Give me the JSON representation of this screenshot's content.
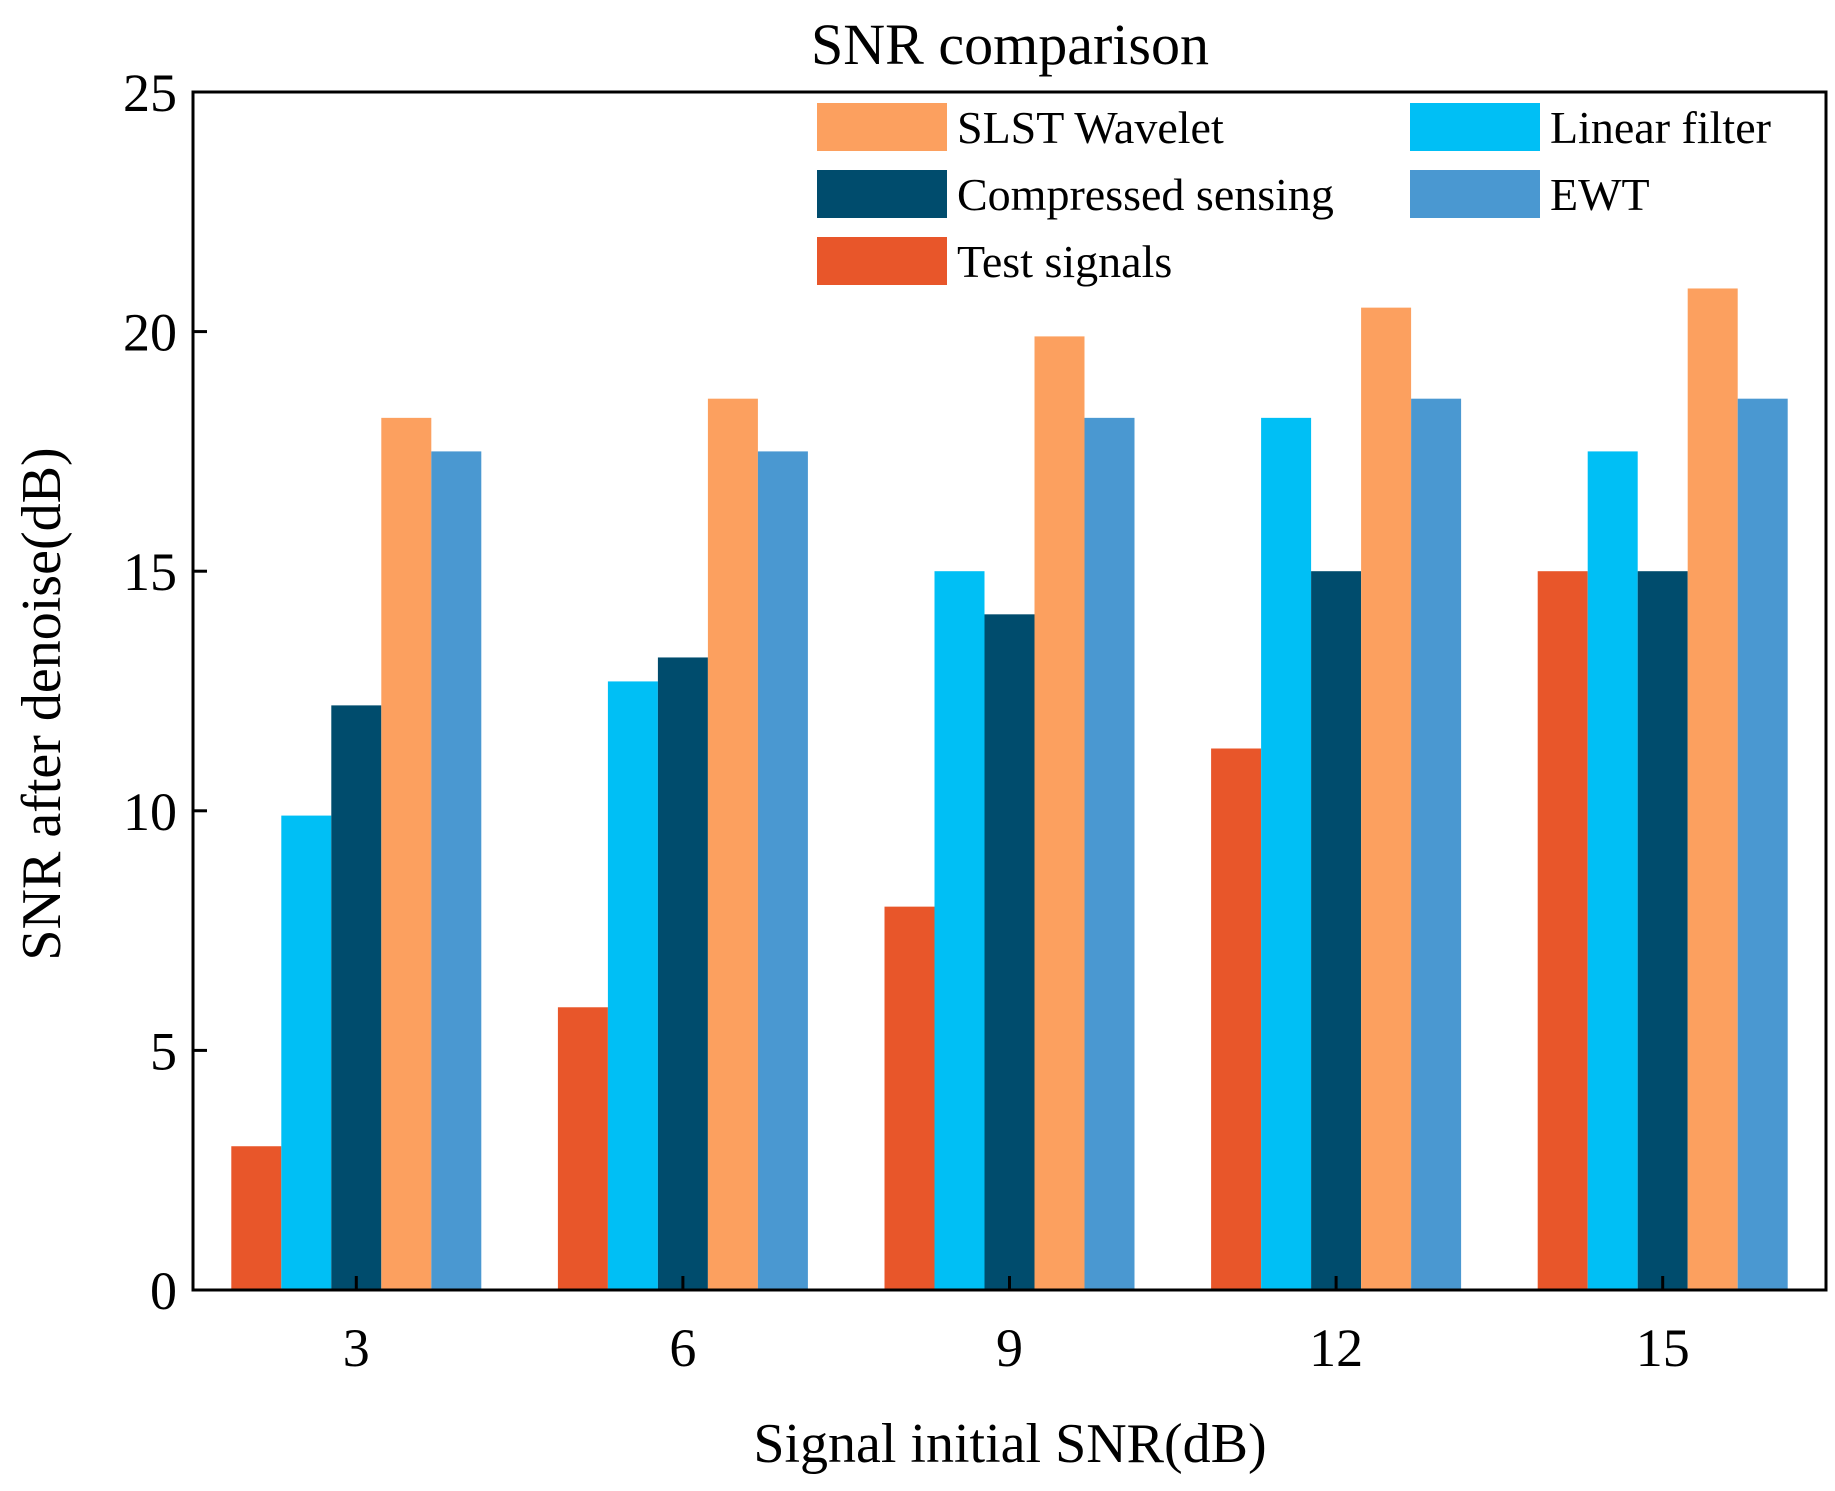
{
  "chart_data": {
    "type": "bar",
    "title": "SNR comparison",
    "xlabel": "Signal initial SNR(dB)",
    "ylabel": "SNR after denoise(dB)",
    "ylim": [
      0,
      25
    ],
    "yticks": [
      0,
      5,
      10,
      15,
      20,
      25
    ],
    "categories": [
      "3",
      "6",
      "9",
      "12",
      "15"
    ],
    "series": [
      {
        "name": "Test signals",
        "color": "#E8562A",
        "values": [
          3.0,
          5.9,
          8.0,
          11.3,
          15.0
        ]
      },
      {
        "name": "Linear filter",
        "color": "#00BFF5",
        "values": [
          9.9,
          12.7,
          15.0,
          18.2,
          17.5
        ]
      },
      {
        "name": "Compressed sensing",
        "color": "#004C6D",
        "values": [
          12.2,
          13.2,
          14.1,
          15.0,
          15.0
        ]
      },
      {
        "name": "SLST Wavelet",
        "color": "#FCA05F",
        "values": [
          18.2,
          18.6,
          19.9,
          20.5,
          20.9
        ]
      },
      {
        "name": "EWT",
        "color": "#4A98D1",
        "values": [
          17.5,
          17.5,
          18.2,
          18.6,
          18.6
        ]
      }
    ],
    "legend": {
      "position": "top-right",
      "order": [
        "SLST Wavelet",
        "Linear filter",
        "Compressed sensing",
        "EWT",
        "Test signals"
      ]
    },
    "grid": false
  }
}
